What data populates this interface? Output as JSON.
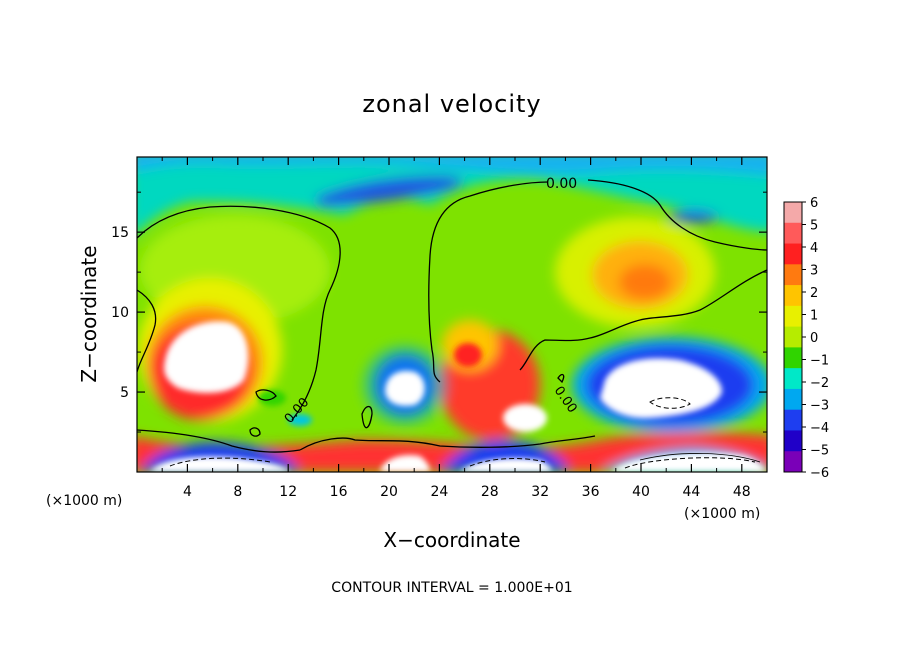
{
  "chart_data": {
    "type": "heatmap",
    "title": "zonal velocity",
    "xlabel": "X−coordinate",
    "ylabel": "Z−coordinate",
    "x_units_left": "(×1000 m)",
    "x_units_right": "(×1000 m)",
    "xlim": [
      0,
      50
    ],
    "ylim": [
      0,
      19.7
    ],
    "x_ticks": [
      4,
      8,
      12,
      16,
      20,
      24,
      28,
      32,
      36,
      40,
      44,
      48
    ],
    "y_ticks": [
      5,
      10,
      15
    ],
    "x_tick_labels": [
      "4",
      "8",
      "12",
      "16",
      "20",
      "24",
      "28",
      "32",
      "36",
      "40",
      "44",
      "48"
    ],
    "y_tick_labels": [
      "5",
      "10",
      "15"
    ],
    "colorbar": {
      "levels": [
        6,
        5,
        4,
        3,
        2,
        1,
        0,
        -1,
        -2,
        -3,
        -4,
        -5,
        -6
      ],
      "labels": [
        "6",
        "5",
        "4",
        "3",
        "2",
        "1",
        "0",
        "−1",
        "−2",
        "−3",
        "−4",
        "−5",
        "−6"
      ],
      "colors": [
        "#f4a9a9",
        "#ff5a5a",
        "#ff2020",
        "#ff7a10",
        "#ffc400",
        "#e8f000",
        "#b6ec00",
        "#30d400",
        "#00e8c8",
        "#00a8f0",
        "#1e3ef0",
        "#2000c8",
        "#7a00b8"
      ]
    },
    "contour_labels": [
      "0.00",
      "0.00",
      "0.00"
    ],
    "grid": false,
    "annotation": "CONTOUR INTERVAL = 1.000E+01"
  }
}
